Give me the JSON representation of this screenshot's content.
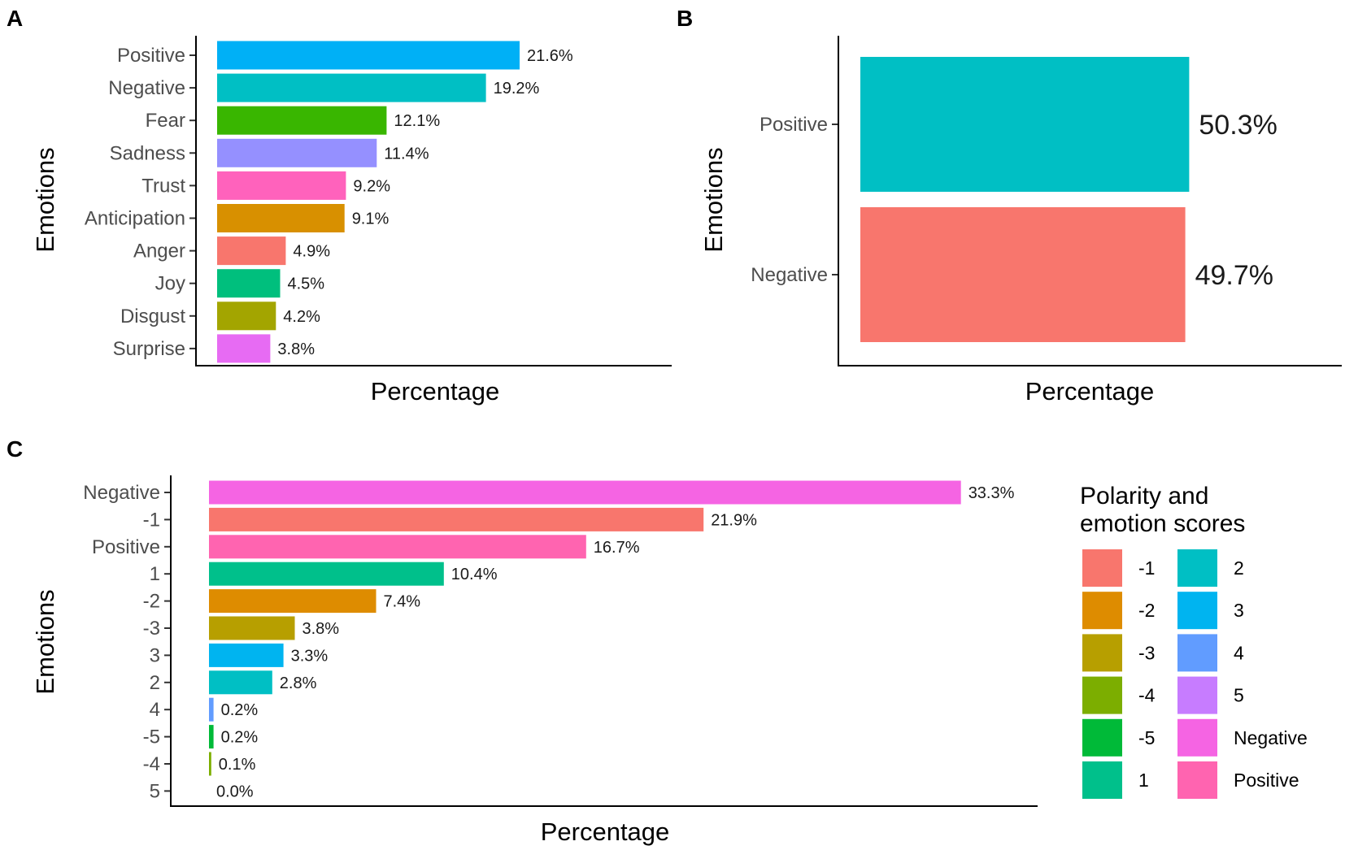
{
  "chart_data": [
    {
      "panel": "A",
      "type": "bar",
      "orientation": "horizontal",
      "xlabel": "Percentage",
      "ylabel": "Emotions",
      "categories": [
        "Positive",
        "Negative",
        "Fear",
        "Sadness",
        "Trust",
        "Anticipation",
        "Anger",
        "Joy",
        "Disgust",
        "Surprise"
      ],
      "values": [
        21.6,
        19.2,
        12.1,
        11.4,
        9.2,
        9.1,
        4.9,
        4.5,
        4.2,
        3.8
      ],
      "value_labels": [
        "21.6%",
        "19.2%",
        "12.1%",
        "11.4%",
        "9.2%",
        "9.1%",
        "4.9%",
        "4.5%",
        "4.2%",
        "3.8%"
      ],
      "colors": [
        "#00B0F6",
        "#00BFC4",
        "#39B600",
        "#9590FF",
        "#FF62BC",
        "#D89000",
        "#F8766D",
        "#00BF7D",
        "#A3A500",
        "#E76BF3"
      ],
      "xlim": [
        0,
        23
      ]
    },
    {
      "panel": "B",
      "type": "bar",
      "orientation": "horizontal",
      "xlabel": "Percentage",
      "ylabel": "Emotions",
      "categories": [
        "Positive",
        "Negative"
      ],
      "values": [
        50.3,
        49.7
      ],
      "value_labels": [
        "50.3%",
        "49.7%"
      ],
      "colors": [
        "#00BFC4",
        "#F8766D"
      ],
      "xlim": [
        0,
        54
      ]
    },
    {
      "panel": "C",
      "type": "bar",
      "orientation": "horizontal",
      "xlabel": "Percentage",
      "ylabel": "Emotions",
      "categories": [
        "Negative",
        "-1",
        "Positive",
        "1",
        "-2",
        "-3",
        "3",
        "2",
        "4",
        "-5",
        "-4",
        "5"
      ],
      "values": [
        33.3,
        21.9,
        16.7,
        10.4,
        7.4,
        3.8,
        3.3,
        2.8,
        0.2,
        0.2,
        0.1,
        0.0
      ],
      "value_labels": [
        "33.3%",
        "21.9%",
        "16.7%",
        "10.4%",
        "7.4%",
        "3.8%",
        "3.3%",
        "2.8%",
        "0.2%",
        "0.2%",
        "0.1%",
        "0.0%"
      ],
      "colors": [
        "#F564E3",
        "#F8766D",
        "#FF64B0",
        "#00C08B",
        "#DE8C00",
        "#B79F00",
        "#00B4F0",
        "#00BFC4",
        "#619CFF",
        "#00BA38",
        "#7CAE00",
        "#C77CFF"
      ],
      "xlim": [
        0,
        36
      ],
      "legend": {
        "title": [
          "Polarity and",
          "emotion scores"
        ],
        "position": "right",
        "entries": [
          {
            "label": "-1",
            "color": "#F8766D"
          },
          {
            "label": "-2",
            "color": "#DE8C00"
          },
          {
            "label": "-3",
            "color": "#B79F00"
          },
          {
            "label": "-4",
            "color": "#7CAE00"
          },
          {
            "label": "-5",
            "color": "#00BA38"
          },
          {
            "label": "1",
            "color": "#00C08B"
          },
          {
            "label": "2",
            "color": "#00BFC4"
          },
          {
            "label": "3",
            "color": "#00B4F0"
          },
          {
            "label": "4",
            "color": "#619CFF"
          },
          {
            "label": "5",
            "color": "#C77CFF"
          },
          {
            "label": "Negative",
            "color": "#F564E3"
          },
          {
            "label": "Positive",
            "color": "#FF64B0"
          }
        ]
      }
    }
  ]
}
